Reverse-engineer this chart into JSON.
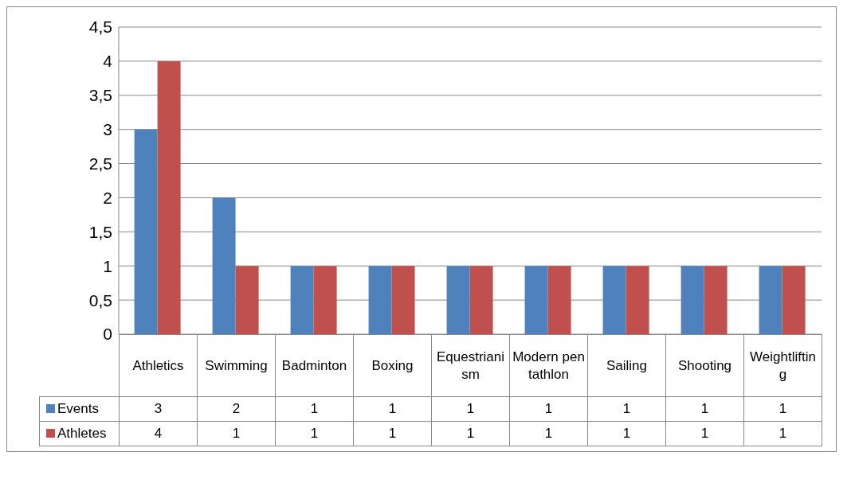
{
  "chart_data": {
    "type": "bar",
    "categories": [
      "Athletics",
      "Swimming",
      "Badminton",
      "Boxing",
      "Equestrianism",
      "Modern pentathlon",
      "Sailing",
      "Shooting",
      "Weightlifting"
    ],
    "series": [
      {
        "name": "Events",
        "color": "#4f81bd",
        "values": [
          3,
          2,
          1,
          1,
          1,
          1,
          1,
          1,
          1
        ]
      },
      {
        "name": "Athletes",
        "color": "#c0504d",
        "values": [
          4,
          1,
          1,
          1,
          1,
          1,
          1,
          1,
          1
        ]
      }
    ],
    "ylim": [
      0,
      4.5
    ],
    "yticks": [
      0,
      {
        "value": 0.5,
        "label": "0,5"
      },
      1,
      {
        "value": 1.5,
        "label": "1,5"
      },
      2,
      {
        "value": 2.5,
        "label": "2,5"
      },
      3,
      {
        "value": 3.5,
        "label": "3,5"
      },
      4,
      {
        "value": 4.5,
        "label": "4,5"
      }
    ],
    "grid": "y",
    "legend": "bottom",
    "data_labels": true
  }
}
